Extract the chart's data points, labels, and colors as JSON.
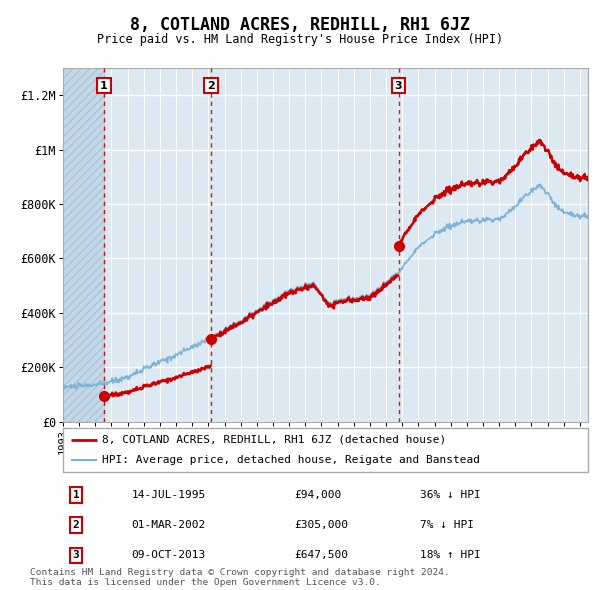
{
  "title": "8, COTLAND ACRES, REDHILL, RH1 6JZ",
  "subtitle": "Price paid vs. HM Land Registry's House Price Index (HPI)",
  "ylim": [
    0,
    1300000
  ],
  "xlim_start": 1993,
  "xlim_end": 2025.5,
  "yticks": [
    0,
    200000,
    400000,
    600000,
    800000,
    1000000,
    1200000
  ],
  "ytick_labels": [
    "£0",
    "£200K",
    "£400K",
    "£600K",
    "£800K",
    "£1M",
    "£1.2M"
  ],
  "sales": [
    {
      "date_year": 1995.54,
      "price": 94000,
      "label": "1",
      "date_str": "14-JUL-1995",
      "price_str": "£94,000",
      "hpi_str": "36% ↓ HPI"
    },
    {
      "date_year": 2002.17,
      "price": 305000,
      "label": "2",
      "date_str": "01-MAR-2002",
      "price_str": "£305,000",
      "hpi_str": "7% ↓ HPI"
    },
    {
      "date_year": 2013.77,
      "price": 647500,
      "label": "3",
      "date_str": "09-OCT-2013",
      "price_str": "£647,500",
      "hpi_str": "18% ↑ HPI"
    }
  ],
  "legend_line1": "8, COTLAND ACRES, REDHILL, RH1 6JZ (detached house)",
  "legend_line2": "HPI: Average price, detached house, Reigate and Banstead",
  "bg_color": "#dce8f2",
  "hatch_color": "#c5d8e8",
  "grid_color": "#ffffff",
  "sale_color": "#cc0000",
  "hpi_color": "#7ab0d4",
  "footer": "Contains HM Land Registry data © Crown copyright and database right 2024.\nThis data is licensed under the Open Government Licence v3.0."
}
